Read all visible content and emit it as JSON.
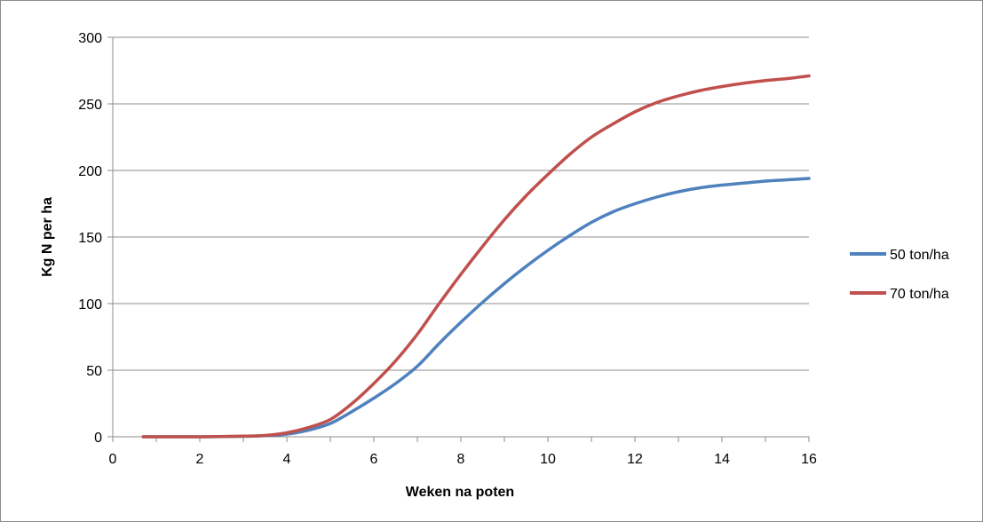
{
  "chart_data": {
    "type": "line",
    "title": "",
    "xlabel": "Weken na poten",
    "ylabel": "Kg N per ha",
    "xlim": [
      0,
      16
    ],
    "ylim": [
      0,
      300
    ],
    "xticks": [
      "0",
      "2",
      "4",
      "6",
      "8",
      "10",
      "12",
      "14",
      "16"
    ],
    "yticks": [
      "0",
      "50",
      "100",
      "150",
      "200",
      "250",
      "300"
    ],
    "grid": "horizontal",
    "legend_position": "right",
    "series": [
      {
        "name": "50 ton/ha",
        "color": "#4f81bd",
        "x": [
          0.7,
          2,
          3,
          3.5,
          4,
          4.5,
          5,
          5.5,
          6,
          6.5,
          7,
          7.5,
          8,
          8.5,
          9,
          9.5,
          10,
          10.5,
          11,
          11.5,
          12,
          12.5,
          13,
          13.5,
          14,
          14.5,
          15,
          15.5,
          16
        ],
        "y": [
          0,
          0,
          0.3,
          0.8,
          2,
          5,
          10,
          19,
          29,
          40,
          53,
          70,
          86,
          101,
          115,
          128,
          140,
          151,
          161,
          169,
          175,
          180,
          184,
          187,
          189,
          190.5,
          192,
          193,
          194
        ]
      },
      {
        "name": "70 ton/ha",
        "color": "#c0504d",
        "x": [
          0.7,
          2,
          3,
          3.5,
          4,
          4.5,
          5,
          5.5,
          6,
          6.5,
          7,
          7.5,
          8,
          8.5,
          9,
          9.5,
          10,
          10.5,
          11,
          11.5,
          12,
          12.5,
          13,
          13.5,
          14,
          14.5,
          15,
          15.5,
          16
        ],
        "y": [
          0,
          0,
          0.5,
          1,
          3,
          7,
          13,
          25,
          40,
          57,
          77,
          100,
          122,
          143,
          163,
          181,
          197,
          212,
          225,
          235,
          244,
          251,
          256,
          260,
          263,
          265.5,
          267.5,
          269,
          271
        ]
      }
    ]
  }
}
